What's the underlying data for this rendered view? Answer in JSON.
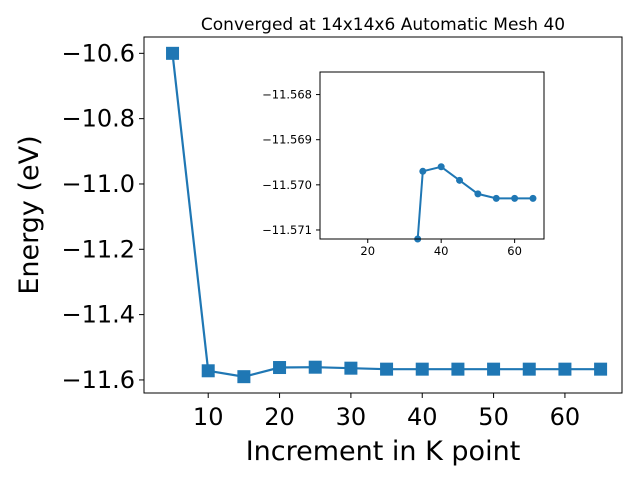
{
  "chart_data": [
    {
      "type": "line",
      "title": "Converged at 14x14x6 Automatic Mesh 40",
      "xlabel": "Increment in K point",
      "ylabel": "Energy (eV)",
      "xlim": [
        1,
        68
      ],
      "ylim": [
        -11.64,
        -10.55
      ],
      "xticks": [
        10,
        20,
        30,
        40,
        50,
        60
      ],
      "xtick_labels": [
        "10",
        "20",
        "30",
        "40",
        "50",
        "60"
      ],
      "yticks": [
        -10.6,
        -10.8,
        -11.0,
        -11.2,
        -11.4,
        -11.6
      ],
      "ytick_labels": [
        "−10.6",
        "−10.8",
        "−11.0",
        "−11.2",
        "−11.4",
        "−11.6"
      ],
      "grid": false,
      "color": "#1f77b4",
      "marker": "square",
      "x": [
        5,
        10,
        15,
        20,
        25,
        30,
        35,
        40,
        45,
        50,
        55,
        60,
        65
      ],
      "y": [
        -10.6,
        -11.572,
        -11.59,
        -11.562,
        -11.561,
        -11.564,
        -11.567,
        -11.567,
        -11.567,
        -11.567,
        -11.567,
        -11.567,
        -11.567
      ]
    },
    {
      "type": "line",
      "title": "",
      "xlabel": "",
      "ylabel": "",
      "xlim": [
        7,
        68
      ],
      "ylim": [
        -11.5712,
        -11.5675
      ],
      "xticks": [
        20,
        40,
        60
      ],
      "xtick_labels": [
        "20",
        "40",
        "60"
      ],
      "yticks": [
        -11.571,
        -11.57,
        -11.569,
        -11.568
      ],
      "ytick_labels": [
        "−11.571",
        "−11.570",
        "−11.569",
        "−11.568"
      ],
      "grid": false,
      "color": "#1f77b4",
      "marker": "circle",
      "x": [
        33.6,
        35,
        40,
        45,
        50,
        55,
        60,
        65
      ],
      "y": [
        -11.5712,
        -11.5697,
        -11.5696,
        -11.5699,
        -11.5702,
        -11.5703,
        -11.5703,
        -11.5703
      ]
    }
  ]
}
